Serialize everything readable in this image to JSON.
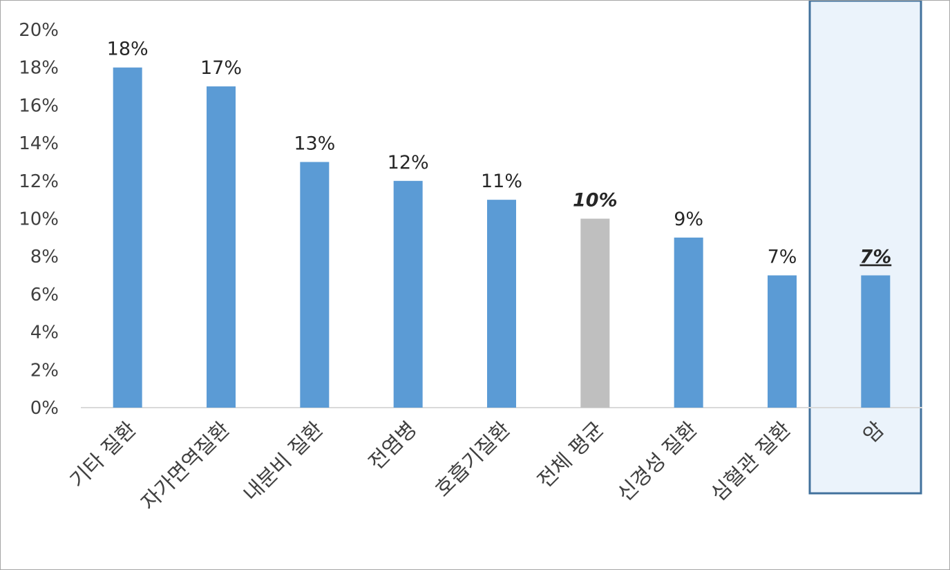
{
  "chart_data": {
    "type": "bar",
    "categories": [
      "기타 질환",
      "자가면역질환",
      "내분비 질환",
      "전염병",
      "호흡기질환",
      "전체 평균",
      "신경성 질환",
      "심혈관 질환",
      "암"
    ],
    "values": [
      18,
      17,
      13,
      12,
      11,
      10,
      9,
      7,
      7
    ],
    "data_labels": [
      "18%",
      "17%",
      "13%",
      "12%",
      "11%",
      "10%",
      "9%",
      "7%",
      "7%"
    ],
    "ylim": [
      0,
      20
    ],
    "y_ticks": [
      0,
      2,
      4,
      6,
      8,
      10,
      12,
      14,
      16,
      18,
      20
    ],
    "y_tick_labels": [
      "0%",
      "2%",
      "4%",
      "6%",
      "8%",
      "10%",
      "12%",
      "14%",
      "16%",
      "18%",
      "20%"
    ],
    "grid": false,
    "legend": "none",
    "highlighted_category": "암",
    "average_category": "전체 평균",
    "colors": {
      "bar": "#5b9bd5",
      "average_bar": "#bfbfbf",
      "highlight_fill": "#ebf3fb",
      "highlight_border": "#41719c",
      "axis": "#d9d9d9",
      "label_text": "#404040",
      "value_text": "#262626"
    }
  }
}
